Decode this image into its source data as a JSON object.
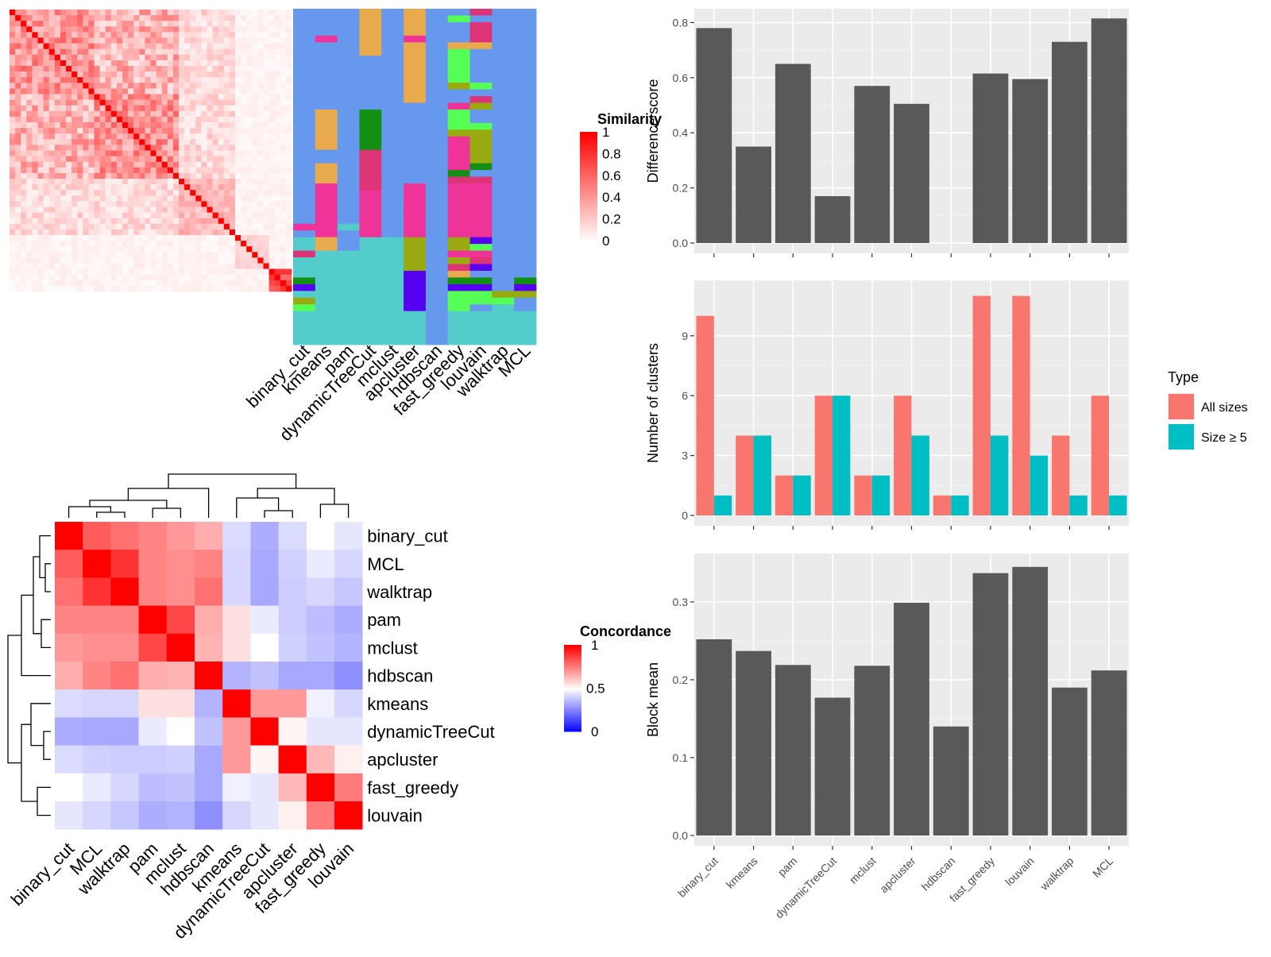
{
  "methods": [
    "binary_cut",
    "kmeans",
    "pam",
    "dynamicTreeCut",
    "mclust",
    "apcluster",
    "hdbscan",
    "fast_greedy",
    "louvain",
    "walktrap",
    "MCL"
  ],
  "similarity_heatmap": {
    "legend_title": "Similarity",
    "legend_ticks": [
      "1",
      "0.8",
      "0.6",
      "0.4",
      "0.2",
      "0"
    ],
    "rows": 50,
    "low_color": "#ffffff",
    "high_color": "#ff0000"
  },
  "membership_grid": {
    "colors": [
      "#6699ee",
      "#e8aa4c",
      "#ee3399",
      "#55cccc",
      "#139013",
      "#99aa11",
      "#55ff55",
      "#5500ee",
      "#dd3377"
    ]
  },
  "concordance_heatmap": {
    "legend_title": "Concordance",
    "legend_ticks": [
      "1",
      "0.5",
      "0"
    ],
    "low_color": "#0000ff",
    "mid_color": "#ffffff",
    "high_color": "#ff0000",
    "order": [
      "binary_cut",
      "MCL",
      "walktrap",
      "pam",
      "mclust",
      "hdbscan",
      "kmeans",
      "dynamicTreeCut",
      "apcluster",
      "fast_greedy",
      "louvain"
    ],
    "matrix": [
      [
        1.0,
        0.82,
        0.78,
        0.74,
        0.7,
        0.66,
        0.43,
        0.34,
        0.43,
        0.5,
        0.45
      ],
      [
        0.82,
        1.0,
        0.9,
        0.74,
        0.72,
        0.74,
        0.42,
        0.33,
        0.41,
        0.46,
        0.42
      ],
      [
        0.78,
        0.9,
        1.0,
        0.74,
        0.72,
        0.78,
        0.42,
        0.33,
        0.4,
        0.42,
        0.39
      ],
      [
        0.74,
        0.74,
        0.74,
        1.0,
        0.86,
        0.66,
        0.56,
        0.46,
        0.4,
        0.37,
        0.34
      ],
      [
        0.7,
        0.72,
        0.72,
        0.86,
        1.0,
        0.65,
        0.56,
        0.5,
        0.41,
        0.38,
        0.35
      ],
      [
        0.66,
        0.74,
        0.78,
        0.66,
        0.65,
        1.0,
        0.35,
        0.38,
        0.33,
        0.33,
        0.28
      ],
      [
        0.43,
        0.42,
        0.42,
        0.56,
        0.56,
        0.35,
        1.0,
        0.7,
        0.7,
        0.47,
        0.42
      ],
      [
        0.34,
        0.33,
        0.33,
        0.46,
        0.5,
        0.38,
        0.7,
        1.0,
        0.52,
        0.45,
        0.45
      ],
      [
        0.43,
        0.41,
        0.4,
        0.4,
        0.41,
        0.33,
        0.7,
        0.52,
        1.0,
        0.64,
        0.53
      ],
      [
        0.5,
        0.46,
        0.42,
        0.37,
        0.38,
        0.33,
        0.47,
        0.45,
        0.64,
        1.0,
        0.76
      ],
      [
        0.45,
        0.42,
        0.39,
        0.34,
        0.35,
        0.28,
        0.42,
        0.45,
        0.53,
        0.76,
        1.0
      ]
    ]
  },
  "chart_data": [
    {
      "type": "bar",
      "categories": [
        "binary_cut",
        "kmeans",
        "pam",
        "dynamicTreeCut",
        "mclust",
        "apcluster",
        "hdbscan",
        "fast_greedy",
        "louvain",
        "walktrap",
        "MCL"
      ],
      "values": [
        0.78,
        0.35,
        0.65,
        0.17,
        0.57,
        0.505,
        null,
        0.615,
        0.595,
        0.73,
        0.815
      ],
      "ylabel": "Difference score",
      "ylim": [
        0,
        0.83
      ],
      "yticks": [
        "0.0",
        "0.2",
        "0.4",
        "0.6",
        "0.8"
      ],
      "grid": true,
      "bar_color": "#595959"
    },
    {
      "type": "bar",
      "categories": [
        "binary_cut",
        "kmeans",
        "pam",
        "dynamicTreeCut",
        "mclust",
        "apcluster",
        "hdbscan",
        "fast_greedy",
        "louvain",
        "walktrap",
        "MCL"
      ],
      "series": [
        {
          "name": "All sizes",
          "values": [
            10,
            4,
            2,
            6,
            2,
            6,
            1,
            11,
            11,
            4,
            6
          ],
          "color": "#f8766d"
        },
        {
          "name": "Size ≥ 5",
          "values": [
            1,
            4,
            2,
            6,
            2,
            4,
            1,
            4,
            3,
            1,
            1
          ],
          "color": "#00bfc4"
        }
      ],
      "ylabel": "Number of clusters",
      "ylim": [
        0,
        11.5
      ],
      "yticks": [
        "0",
        "3",
        "6",
        "9"
      ],
      "legend_title": "Type",
      "legend_placement": "right",
      "grid": true
    },
    {
      "type": "bar",
      "categories": [
        "binary_cut",
        "kmeans",
        "pam",
        "dynamicTreeCut",
        "mclust",
        "apcluster",
        "hdbscan",
        "fast_greedy",
        "louvain",
        "walktrap",
        "MCL"
      ],
      "values": [
        0.252,
        0.237,
        0.219,
        0.177,
        0.218,
        0.299,
        0.14,
        0.337,
        0.345,
        0.19,
        0.212
      ],
      "ylabel": "Block mean",
      "ylim": [
        0,
        0.355
      ],
      "yticks": [
        "0.0",
        "0.1",
        "0.2",
        "0.3"
      ],
      "grid": true,
      "bar_color": "#595959"
    }
  ]
}
